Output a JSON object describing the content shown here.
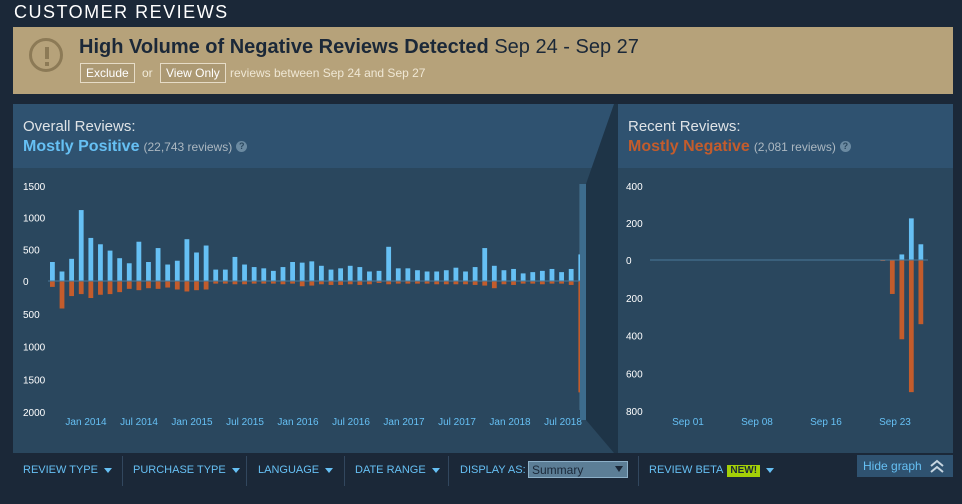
{
  "section_title": "CUSTOMER REVIEWS",
  "banner": {
    "headline": "High Volume of Negative Reviews Detected",
    "dates": "Sep 24 - Sep 27",
    "exclude_label": "Exclude",
    "or_label": "or",
    "view_only_label": "View Only",
    "tail": "reviews between Sep 24 and Sep 27",
    "icon": "alert-icon"
  },
  "overall": {
    "label": "Overall Reviews:",
    "summary": "Mostly Positive",
    "count": "(22,743 reviews)",
    "help": "?"
  },
  "recent": {
    "label": "Recent Reviews:",
    "summary": "Mostly Negative",
    "count": "(2,081 reviews)",
    "help": "?"
  },
  "colors": {
    "positive": "#66c0f4",
    "negative": "#c35c2c",
    "panel": "#2a475e",
    "banner": "#b6a27a"
  },
  "chart_data": [
    {
      "type": "bar",
      "title": "",
      "y_ticks_up": [
        "1500",
        "1000",
        "500",
        "0"
      ],
      "y_ticks_down": [
        "500",
        "1000",
        "1500",
        "2000"
      ],
      "ylim": [
        -2000,
        1500
      ],
      "x_labels": [
        "Jan 2014",
        "Jul 2014",
        "Jan 2015",
        "Jul 2015",
        "Jan 2016",
        "Jul 2016",
        "Jan 2017",
        "Jul 2017",
        "Jan 2018",
        "Jul 2018"
      ],
      "series": [
        {
          "name": "positive",
          "values": [
            300,
            150,
            350,
            1120,
            680,
            580,
            480,
            360,
            280,
            620,
            300,
            520,
            260,
            320,
            660,
            450,
            560,
            180,
            180,
            380,
            260,
            220,
            200,
            160,
            220,
            300,
            290,
            310,
            240,
            180,
            200,
            240,
            220,
            150,
            160,
            540,
            200,
            200,
            170,
            150,
            150,
            170,
            210,
            150,
            220,
            520,
            240,
            170,
            190,
            120,
            140,
            160,
            190,
            140,
            190,
            420
          ]
        },
        {
          "name": "negative",
          "values": [
            -90,
            -420,
            -230,
            -200,
            -260,
            -210,
            -200,
            -170,
            -120,
            -140,
            -110,
            -120,
            -100,
            -130,
            -160,
            -140,
            -130,
            -40,
            -40,
            -50,
            -50,
            -40,
            -40,
            -40,
            -50,
            -40,
            -80,
            -70,
            -50,
            -60,
            -60,
            -50,
            -60,
            -50,
            -30,
            -50,
            -40,
            -40,
            -40,
            -40,
            -50,
            -50,
            -50,
            -50,
            -60,
            -70,
            -110,
            -50,
            -60,
            -40,
            -40,
            -50,
            -40,
            -40,
            -60,
            -1700
          ]
        }
      ]
    },
    {
      "type": "bar",
      "title": "",
      "y_ticks_up": [
        "400",
        "200",
        "0"
      ],
      "y_ticks_down": [
        "200",
        "400",
        "600",
        "800"
      ],
      "ylim": [
        -800,
        400
      ],
      "x_labels": [
        "Sep 01",
        "Sep 08",
        "Sep 16",
        "Sep 23"
      ],
      "series": [
        {
          "name": "positive",
          "values": [
            0,
            0,
            0,
            0,
            0,
            0,
            0,
            0,
            0,
            0,
            0,
            0,
            0,
            0,
            0,
            0,
            0,
            0,
            0,
            0,
            0,
            0,
            0,
            0,
            0,
            0,
            30,
            225,
            85
          ]
        },
        {
          "name": "negative",
          "values": [
            0,
            0,
            0,
            0,
            0,
            0,
            0,
            0,
            0,
            0,
            0,
            0,
            0,
            0,
            0,
            0,
            0,
            0,
            0,
            0,
            0,
            0,
            0,
            0,
            -5,
            -180,
            -420,
            -700,
            -340
          ]
        }
      ]
    }
  ],
  "filters": {
    "review_type": "REVIEW TYPE",
    "purchase_type": "PURCHASE TYPE",
    "language": "LANGUAGE",
    "date_range": "DATE RANGE",
    "display_as_label": "DISPLAY AS:",
    "display_as_value": "Summary",
    "review_beta": "REVIEW BETA",
    "new_badge": "NEW!",
    "hide_graph": "Hide graph"
  }
}
